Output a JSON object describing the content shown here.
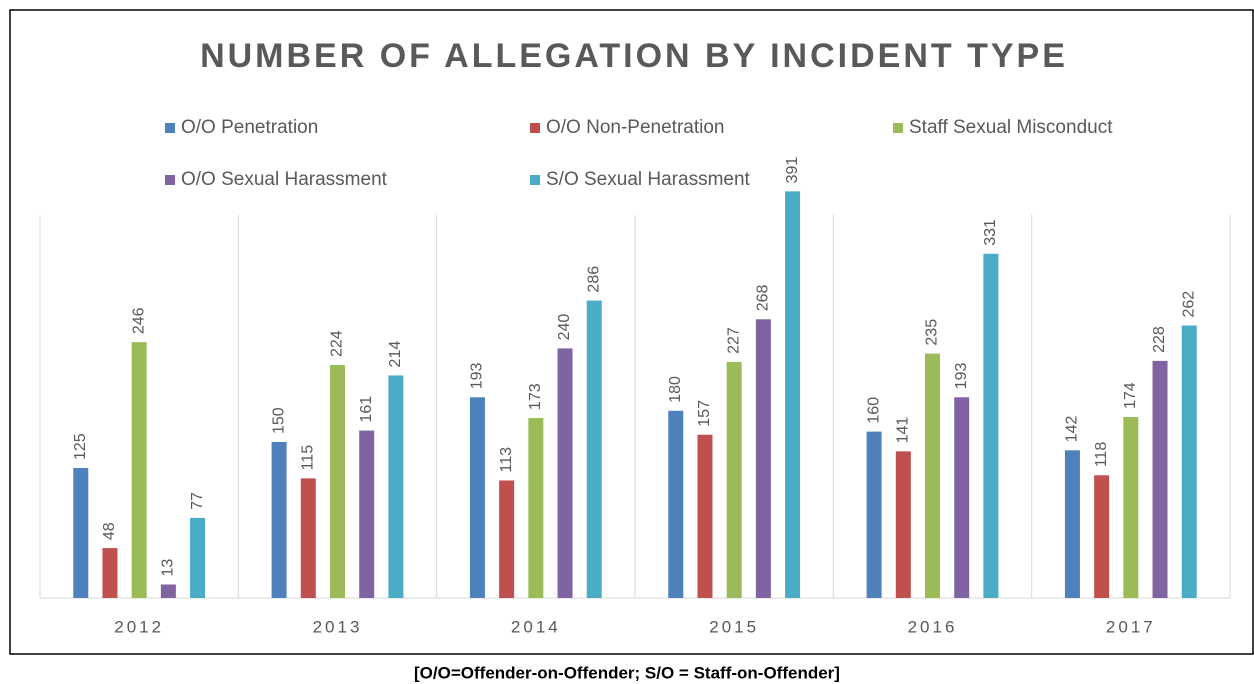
{
  "chart_data": {
    "type": "bar",
    "title": "NUMBER OF ALLEGATION BY INCIDENT TYPE",
    "categories": [
      "2012",
      "2013",
      "2014",
      "2015",
      "2016",
      "2017"
    ],
    "series": [
      {
        "name": "O/O Penetration",
        "color": "#4f81bd",
        "values": [
          125,
          150,
          193,
          180,
          160,
          142
        ]
      },
      {
        "name": "O/O Non-Penetration",
        "color": "#c0504d",
        "values": [
          48,
          115,
          113,
          157,
          141,
          118
        ]
      },
      {
        "name": "Staff Sexual Misconduct",
        "color": "#9bbb59",
        "values": [
          246,
          224,
          173,
          227,
          235,
          174
        ]
      },
      {
        "name": "O/O Sexual Harassment",
        "color": "#8064a2",
        "values": [
          13,
          161,
          240,
          268,
          193,
          228
        ]
      },
      {
        "name": "S/O Sexual Harassment",
        "color": "#4bacc6",
        "values": [
          77,
          214,
          286,
          391,
          331,
          262
        ]
      }
    ],
    "ylim": [
      0,
      450
    ],
    "caption": "[O/O=Offender-on-Offender; S/O = Staff-on-Offender]"
  }
}
